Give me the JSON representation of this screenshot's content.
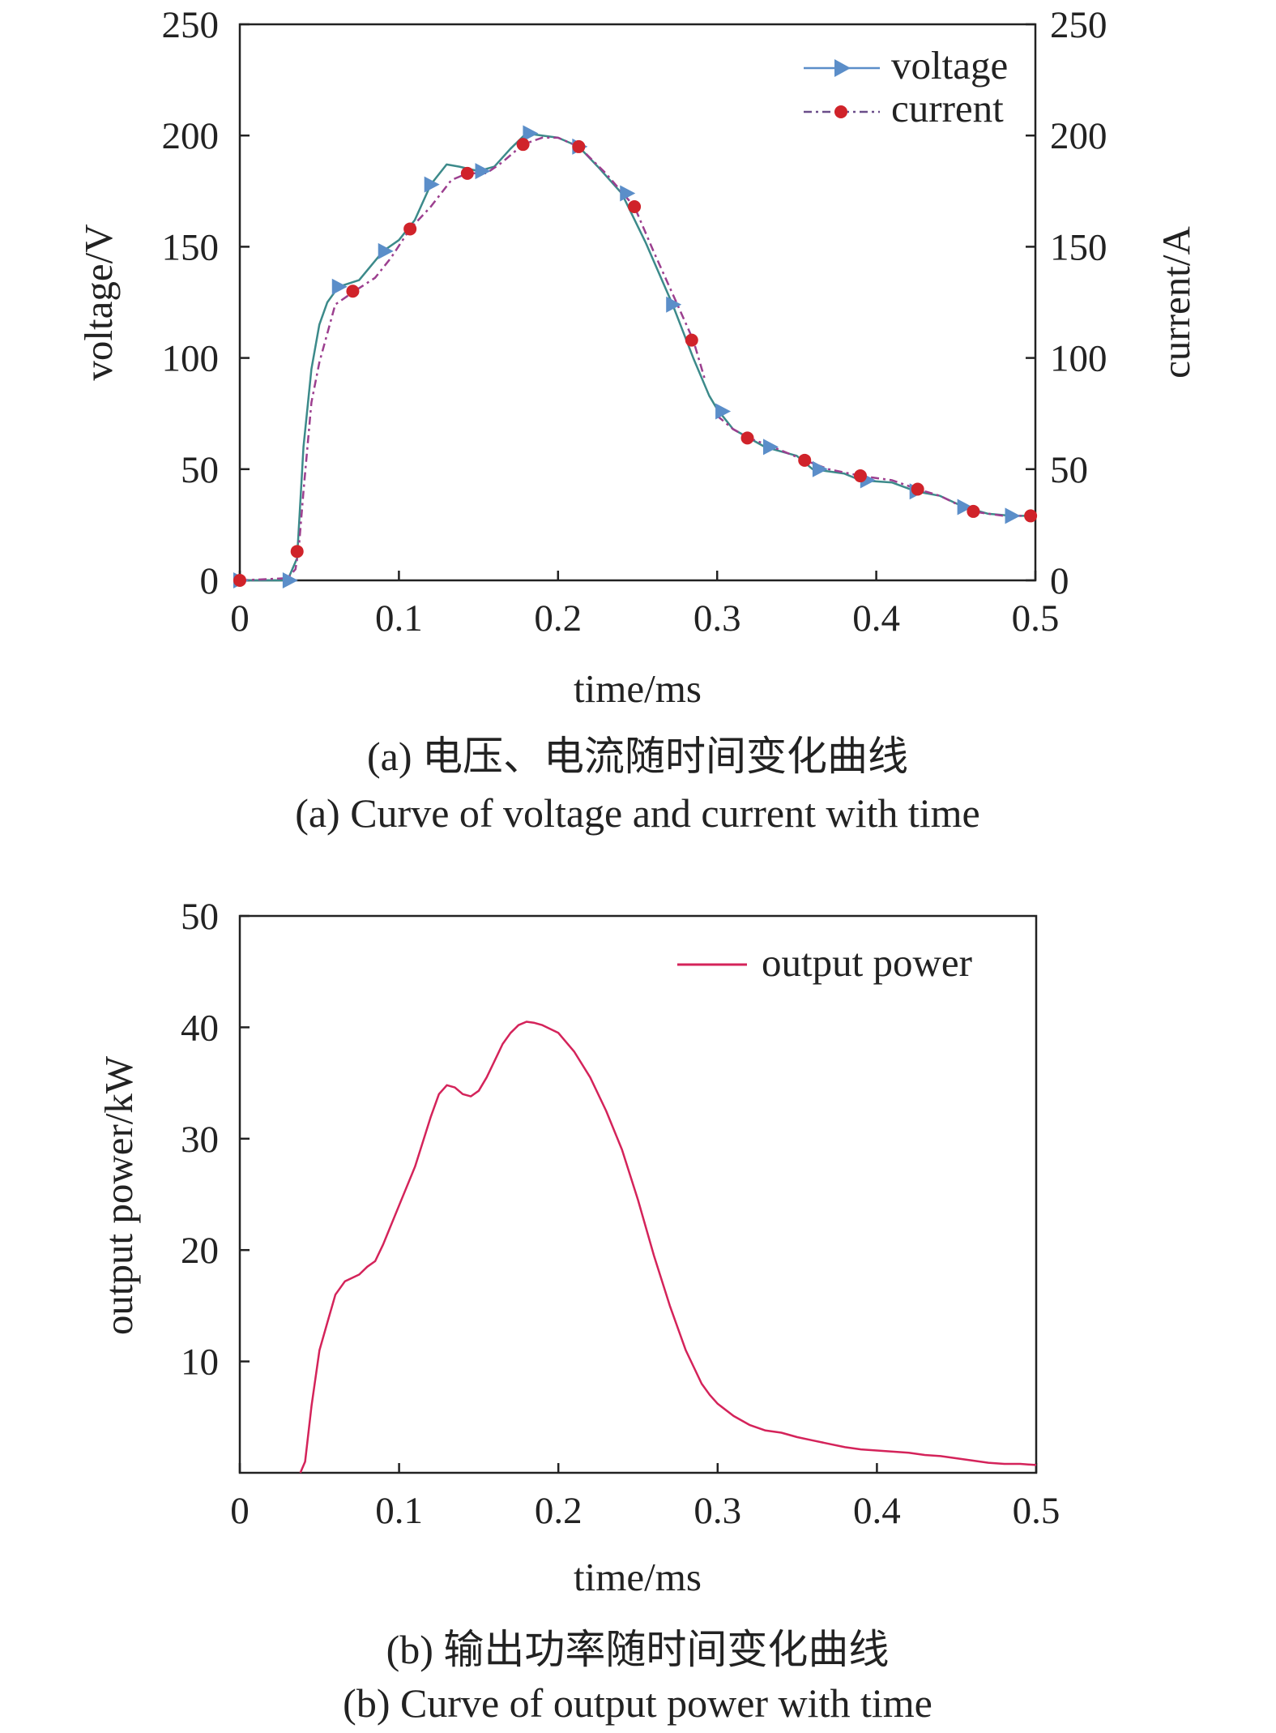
{
  "chart_data": [
    {
      "type": "line",
      "xlabel": "time/ms",
      "ylabel": "voltage/V",
      "y2label": "current/A",
      "xlim": [
        0,
        0.5
      ],
      "ylim": [
        0,
        250
      ],
      "y2lim": [
        0,
        250
      ],
      "xticks": [
        "0",
        "0.1",
        "0.2",
        "0.3",
        "0.4",
        "0.5"
      ],
      "yticks": [
        "0",
        "50",
        "100",
        "150",
        "200",
        "250"
      ],
      "y2ticks": [
        "0",
        "50",
        "100",
        "150",
        "200",
        "250"
      ],
      "legend_position": "top-right",
      "series": [
        {
          "name": "voltage",
          "color": "#5b8ec9",
          "line_color": "#3c8a8a",
          "marker": "triangle-right",
          "x": [
            0,
            0.03,
            0.036,
            0.04,
            0.045,
            0.05,
            0.055,
            0.062,
            0.075,
            0.09,
            0.1,
            0.11,
            0.12,
            0.13,
            0.138,
            0.15,
            0.16,
            0.17,
            0.18,
            0.19,
            0.2,
            0.213,
            0.225,
            0.24,
            0.255,
            0.272,
            0.285,
            0.295,
            0.3,
            0.31,
            0.33,
            0.35,
            0.36,
            0.38,
            0.39,
            0.41,
            0.425,
            0.44,
            0.455,
            0.47,
            0.485,
            0.5
          ],
          "y": [
            0,
            0,
            10,
            60,
            95,
            115,
            125,
            132,
            135,
            148,
            153,
            162,
            178,
            187,
            186,
            184,
            186,
            194,
            201,
            200,
            199,
            195,
            186,
            174,
            152,
            124,
            100,
            83,
            77,
            68,
            60,
            56,
            50,
            48,
            45,
            44,
            40,
            38,
            33,
            30,
            29,
            29
          ]
        },
        {
          "name": "current",
          "color": "#d0232a",
          "line_color": "#9c3f8f",
          "marker": "circle",
          "x": [
            0,
            0.03,
            0.035,
            0.037,
            0.04,
            0.045,
            0.05,
            0.06,
            0.072,
            0.085,
            0.095,
            0.107,
            0.12,
            0.133,
            0.143,
            0.155,
            0.165,
            0.178,
            0.19,
            0.2,
            0.213,
            0.23,
            0.248,
            0.26,
            0.275,
            0.285,
            0.292
          ],
          "y": [
            0,
            1,
            5,
            14,
            40,
            80,
            98,
            124,
            130,
            136,
            145,
            158,
            168,
            180,
            183,
            183,
            188,
            196,
            199,
            199,
            195,
            183,
            168,
            148,
            124,
            108,
            91
          ]
        },
        {
          "name": "current",
          "color": "#d0232a",
          "line_color": "#9c3f8f",
          "marker": "circle",
          "x": [
            0.3,
            0.31,
            0.32,
            0.335,
            0.355,
            0.37,
            0.39,
            0.41,
            0.426,
            0.44,
            0.46,
            0.48,
            0.497,
            0.5
          ],
          "y": [
            74,
            68,
            64,
            60,
            54,
            50,
            47,
            45,
            41,
            38,
            31,
            29,
            29,
            29
          ]
        }
      ],
      "marker_points": {
        "voltage": {
          "x": [
            0,
            0.031,
            0.062,
            0.091,
            0.12,
            0.152,
            0.182,
            0.213,
            0.243,
            0.272,
            0.303,
            0.333,
            0.364,
            0.394,
            0.425,
            0.455,
            0.485
          ],
          "y": [
            0,
            0,
            132,
            148,
            178,
            184,
            201,
            195,
            174,
            124,
            76,
            60,
            50,
            45,
            40,
            33,
            29
          ]
        },
        "current": {
          "x": [
            0,
            0.036,
            0.071,
            0.107,
            0.143,
            0.178,
            0.213,
            0.248,
            0.284,
            0.319,
            0.355,
            0.39,
            0.426,
            0.461,
            0.497
          ],
          "y": [
            0,
            13,
            130,
            158,
            183,
            196,
            195,
            168,
            108,
            64,
            54,
            47,
            41,
            31,
            29
          ]
        }
      }
    },
    {
      "type": "line",
      "xlabel": "time/ms",
      "ylabel": "output power/kW",
      "xlim": [
        0,
        0.5
      ],
      "ylim": [
        0,
        50
      ],
      "xticks": [
        "0",
        "0.1",
        "0.2",
        "0.3",
        "0.4",
        "0.5"
      ],
      "yticks": [
        "10",
        "20",
        "30",
        "40",
        "50"
      ],
      "legend_position": "top-right",
      "series": [
        {
          "name": "output power",
          "color": "#d4235a",
          "x": [
            0.038,
            0.041,
            0.045,
            0.05,
            0.055,
            0.06,
            0.066,
            0.075,
            0.08,
            0.085,
            0.09,
            0.1,
            0.11,
            0.12,
            0.125,
            0.13,
            0.135,
            0.14,
            0.145,
            0.15,
            0.155,
            0.16,
            0.165,
            0.17,
            0.175,
            0.18,
            0.185,
            0.19,
            0.2,
            0.21,
            0.22,
            0.23,
            0.24,
            0.25,
            0.26,
            0.27,
            0.28,
            0.29,
            0.295,
            0.3,
            0.31,
            0.32,
            0.33,
            0.34,
            0.35,
            0.36,
            0.37,
            0.38,
            0.39,
            0.4,
            0.41,
            0.42,
            0.43,
            0.44,
            0.45,
            0.46,
            0.47,
            0.48,
            0.49,
            0.5
          ],
          "y": [
            0,
            1,
            6,
            11,
            13.5,
            16,
            17.2,
            17.8,
            18.5,
            19,
            20.5,
            24,
            27.5,
            32,
            34,
            34.8,
            34.6,
            34,
            33.8,
            34.3,
            35.5,
            37,
            38.5,
            39.5,
            40.2,
            40.5,
            40.4,
            40.2,
            39.5,
            37.8,
            35.5,
            32.5,
            29,
            24.5,
            19.5,
            15,
            11,
            8,
            7,
            6.2,
            5.1,
            4.3,
            3.8,
            3.6,
            3.2,
            2.9,
            2.6,
            2.3,
            2.1,
            2,
            1.9,
            1.8,
            1.6,
            1.5,
            1.3,
            1.1,
            0.9,
            0.8,
            0.8,
            0.7
          ]
        }
      ]
    }
  ],
  "captions": {
    "a_cn": "(a) 电压、电流随时间变化曲线",
    "a_en": "(a) Curve of voltage and current with time",
    "b_cn": "(b) 输出功率随时间变化曲线",
    "b_en": "(b) Curve of output power with time"
  }
}
